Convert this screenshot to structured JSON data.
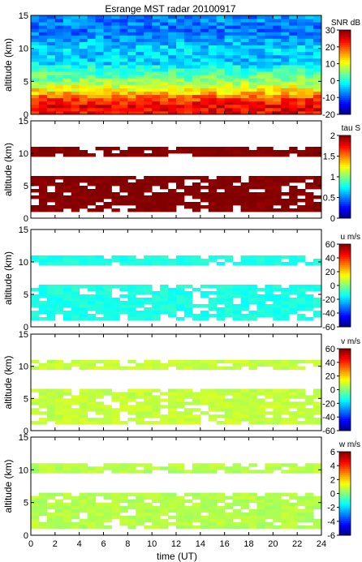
{
  "title": "Esrange MST radar 20100917",
  "xlabel": "time (UT)",
  "chart_data": [
    {
      "type": "heatmap",
      "quantity": "snr",
      "ylabel": "altitude (km)",
      "cb_label": "SNR dB",
      "xlim": [
        0,
        24
      ],
      "ylim": [
        0,
        15
      ],
      "clim": [
        -20,
        30
      ],
      "x_ticks": [
        0,
        2,
        4,
        6,
        8,
        10,
        12,
        14,
        16,
        18,
        20,
        22,
        24
      ],
      "y_ticks": [
        0,
        5,
        10,
        15
      ],
      "cb_ticks": [
        -20,
        -10,
        0,
        10,
        20,
        30
      ],
      "layers": [
        {
          "alt_km": 1.5,
          "value": 24
        },
        {
          "alt_km": 2.5,
          "value": 20
        },
        {
          "alt_km": 3.5,
          "value": 13
        },
        {
          "alt_km": 5.0,
          "value": 6
        },
        {
          "alt_km": 6.5,
          "value": 2
        },
        {
          "alt_km": 8.0,
          "value": -4
        },
        {
          "alt_km": 10.0,
          "value": -3
        },
        {
          "alt_km": 12.5,
          "value": -8
        },
        {
          "alt_km": 14.5,
          "value": -7
        }
      ]
    },
    {
      "type": "heatmap",
      "quantity": "tau",
      "ylabel": "altitude (km)",
      "cb_label": "tau S",
      "xlim": [
        0,
        24
      ],
      "ylim": [
        0,
        15
      ],
      "clim": [
        0,
        2
      ],
      "x_ticks": [
        0,
        2,
        4,
        6,
        8,
        10,
        12,
        14,
        16,
        18,
        20,
        22,
        24
      ],
      "y_ticks": [
        0,
        5,
        10,
        15
      ],
      "cb_ticks": [
        0,
        0.5,
        1,
        1.5,
        2
      ],
      "typical_value": 2,
      "coverage_km": [
        [
          1,
          6.5
        ],
        [
          9.5,
          11
        ]
      ]
    },
    {
      "type": "heatmap",
      "quantity": "u",
      "ylabel": "altitude (km)",
      "cb_label": "u m/s",
      "xlim": [
        0,
        24
      ],
      "ylim": [
        0,
        15
      ],
      "clim": [
        -60,
        60
      ],
      "x_ticks": [
        0,
        2,
        4,
        6,
        8,
        10,
        12,
        14,
        16,
        18,
        20,
        22,
        24
      ],
      "y_ticks": [
        0,
        5,
        10,
        15
      ],
      "cb_ticks": [
        -60,
        -40,
        -20,
        0,
        20,
        40,
        60
      ],
      "typical_value": -12,
      "coverage_km": [
        [
          1,
          6.5
        ],
        [
          9.5,
          11
        ]
      ]
    },
    {
      "type": "heatmap",
      "quantity": "v",
      "ylabel": "altitude (km)",
      "cb_label": "v m/s",
      "xlim": [
        0,
        24
      ],
      "ylim": [
        0,
        15
      ],
      "clim": [
        -60,
        60
      ],
      "x_ticks": [
        0,
        2,
        4,
        6,
        8,
        10,
        12,
        14,
        16,
        18,
        20,
        22,
        24
      ],
      "y_ticks": [
        0,
        5,
        10,
        15
      ],
      "cb_ticks": [
        -60,
        -40,
        -20,
        0,
        20,
        40,
        60
      ],
      "typical_value": 8,
      "coverage_km": [
        [
          1,
          6.5
        ],
        [
          9.5,
          11
        ]
      ]
    },
    {
      "type": "heatmap",
      "quantity": "w",
      "ylabel": "altitude (km)",
      "cb_label": "w m/s",
      "xlim": [
        0,
        24
      ],
      "ylim": [
        0,
        15
      ],
      "clim": [
        -6,
        6
      ],
      "x_ticks": [
        0,
        2,
        4,
        6,
        8,
        10,
        12,
        14,
        16,
        18,
        20,
        22,
        24
      ],
      "y_ticks": [
        0,
        5,
        10,
        15
      ],
      "cb_ticks": [
        -6,
        -4,
        -2,
        0,
        2,
        4,
        6
      ],
      "typical_value": 0.6,
      "coverage_km": [
        [
          1,
          6.5
        ],
        [
          9.5,
          11
        ]
      ]
    }
  ]
}
